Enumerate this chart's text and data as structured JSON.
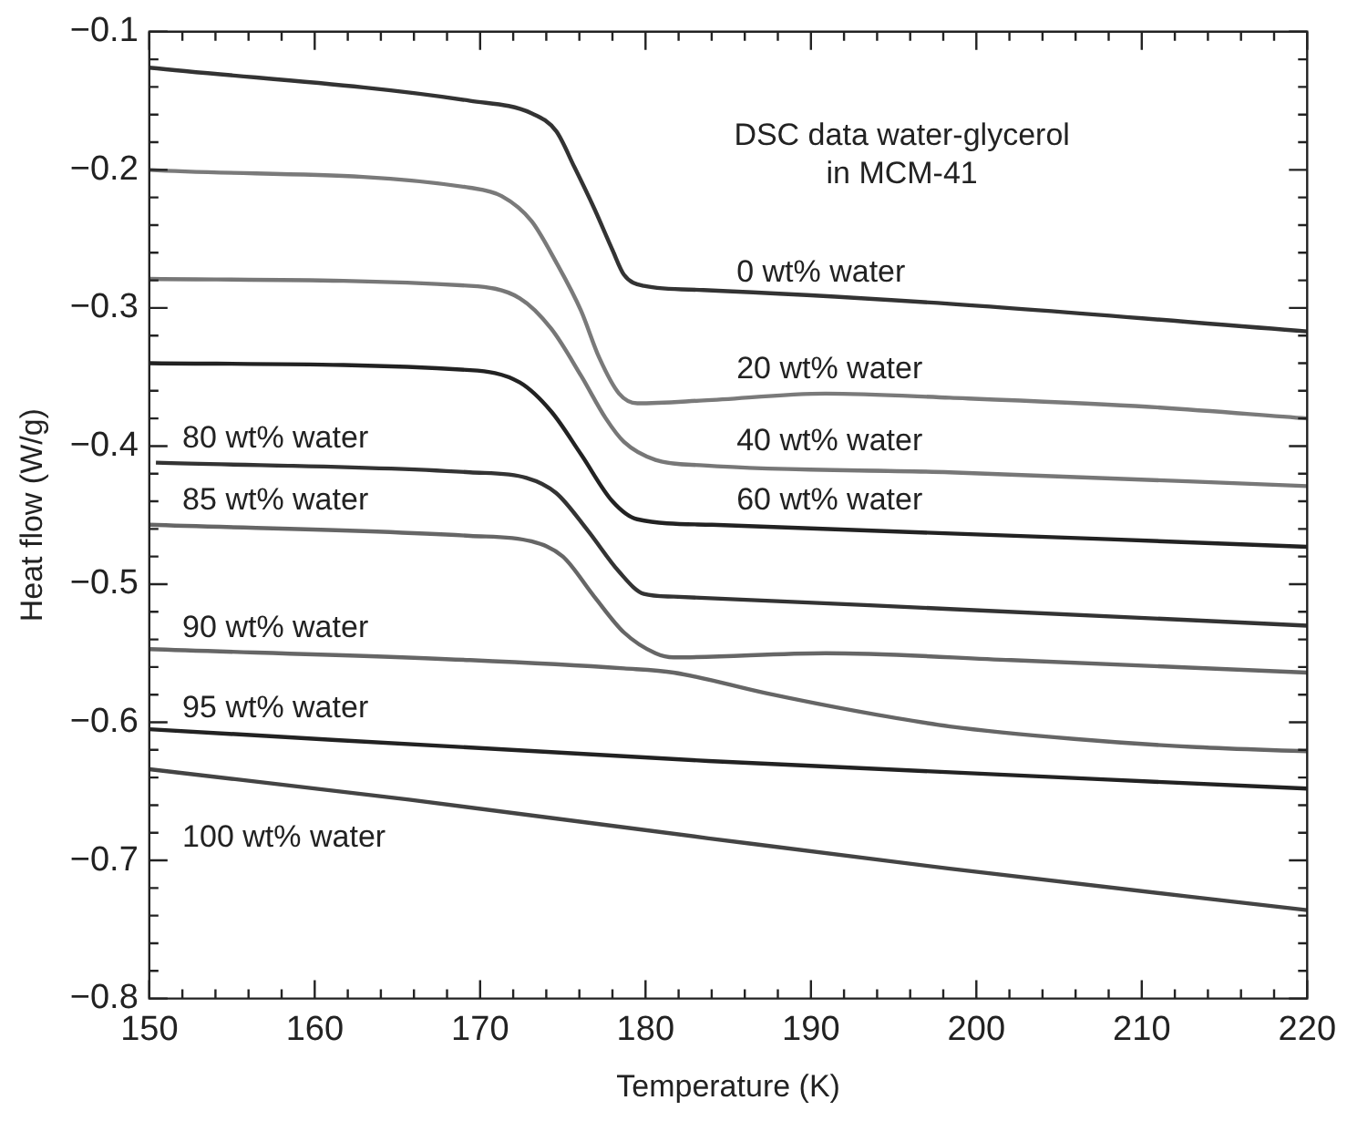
{
  "chart_data": {
    "type": "line",
    "title": "DSC data water-glycerol\nin MCM-41",
    "xlabel": "Temperature (K)",
    "ylabel": "Heat flow (W/g)",
    "xlim": [
      150,
      220
    ],
    "ylim": [
      -0.8,
      -0.1
    ],
    "xticks": [
      150,
      {
        "value": 152,
        "label": null
      },
      {
        "value": 154,
        "label": null
      },
      {
        "value": 156,
        "label": null
      },
      {
        "value": 158,
        "label": null
      },
      160,
      {
        "value": 162,
        "label": null
      },
      {
        "value": 164,
        "label": null
      },
      {
        "value": 166,
        "label": null
      },
      {
        "value": 168,
        "label": null
      },
      170,
      {
        "value": 172,
        "label": null
      },
      {
        "value": 174,
        "label": null
      },
      {
        "value": 176,
        "label": null
      },
      {
        "value": 178,
        "label": null
      },
      180,
      {
        "value": 182,
        "label": null
      },
      {
        "value": 184,
        "label": null
      },
      {
        "value": 186,
        "label": null
      },
      {
        "value": 188,
        "label": null
      },
      190,
      {
        "value": 192,
        "label": null
      },
      {
        "value": 194,
        "label": null
      },
      {
        "value": 196,
        "label": null
      },
      {
        "value": 198,
        "label": null
      },
      200,
      {
        "value": 202,
        "label": null
      },
      {
        "value": 204,
        "label": null
      },
      {
        "value": 206,
        "label": null
      },
      {
        "value": 208,
        "label": null
      },
      210,
      {
        "value": 212,
        "label": null
      },
      {
        "value": 214,
        "label": null
      },
      {
        "value": 216,
        "label": null
      },
      {
        "value": 218,
        "label": null
      },
      220
    ],
    "yticks": [
      {
        "value": -0.8,
        "label": "−0.8"
      },
      {
        "value": -0.78,
        "label": null
      },
      {
        "value": -0.76,
        "label": null
      },
      {
        "value": -0.74,
        "label": null
      },
      {
        "value": -0.72,
        "label": null
      },
      {
        "value": -0.7,
        "label": "−0.7"
      },
      {
        "value": -0.68,
        "label": null
      },
      {
        "value": -0.66,
        "label": null
      },
      {
        "value": -0.64,
        "label": null
      },
      {
        "value": -0.62,
        "label": null
      },
      {
        "value": -0.6,
        "label": "−0.6"
      },
      {
        "value": -0.58,
        "label": null
      },
      {
        "value": -0.56,
        "label": null
      },
      {
        "value": -0.54,
        "label": null
      },
      {
        "value": -0.52,
        "label": null
      },
      {
        "value": -0.5,
        "label": "−0.5"
      },
      {
        "value": -0.48,
        "label": null
      },
      {
        "value": -0.46,
        "label": null
      },
      {
        "value": -0.44,
        "label": null
      },
      {
        "value": -0.42,
        "label": null
      },
      {
        "value": -0.4,
        "label": "−0.4"
      },
      {
        "value": -0.38,
        "label": null
      },
      {
        "value": -0.36,
        "label": null
      },
      {
        "value": -0.34,
        "label": null
      },
      {
        "value": -0.32,
        "label": null
      },
      {
        "value": -0.3,
        "label": "−0.3"
      },
      {
        "value": -0.28,
        "label": null
      },
      {
        "value": -0.26,
        "label": null
      },
      {
        "value": -0.24,
        "label": null
      },
      {
        "value": -0.22,
        "label": null
      },
      {
        "value": -0.2,
        "label": "−0.2"
      },
      {
        "value": -0.18,
        "label": null
      },
      {
        "value": -0.16,
        "label": null
      },
      {
        "value": -0.14,
        "label": null
      },
      {
        "value": -0.12,
        "label": null
      },
      {
        "value": -0.1,
        "label": "−0.1"
      }
    ],
    "grid": false,
    "legend": false,
    "marker": "none",
    "line_style": "solid",
    "series": [
      {
        "name": "0 wt% water",
        "color": "#333333",
        "x": [
          150,
          169.4,
          173.1,
          174.6,
          175.7,
          176.9,
          178,
          178.7,
          179.9,
          183.5,
          198.4,
          220
        ],
        "values": [
          -0.126,
          -0.15,
          -0.159,
          -0.172,
          -0.198,
          -0.228,
          -0.258,
          -0.276,
          -0.284,
          -0.287,
          -0.297,
          -0.317
        ]
      },
      {
        "name": "20 wt% water",
        "color": "#7a7a7a",
        "x": [
          150,
          169.4,
          171.3,
          173.1,
          174.6,
          176.1,
          177.2,
          178.4,
          179.5,
          183.5,
          190.9,
          198.4,
          209.6,
          220
        ],
        "values": [
          -0.2,
          -0.213,
          -0.219,
          -0.237,
          -0.267,
          -0.302,
          -0.336,
          -0.362,
          -0.369,
          -0.367,
          -0.362,
          -0.365,
          -0.371,
          -0.38
        ]
      },
      {
        "name": "40 wt% water",
        "color": "#777777",
        "x": [
          150,
          169.4,
          172.4,
          174.3,
          176.1,
          177.6,
          178.7,
          180.6,
          183.5,
          198.4,
          220
        ],
        "values": [
          -0.279,
          -0.284,
          -0.293,
          -0.315,
          -0.349,
          -0.38,
          -0.397,
          -0.41,
          -0.414,
          -0.419,
          -0.429
        ]
      },
      {
        "name": "60 wt% water",
        "color": "#222222",
        "x": [
          150,
          169.4,
          172.4,
          174.3,
          176.1,
          178,
          179.5,
          184,
          220
        ],
        "values": [
          -0.34,
          -0.345,
          -0.354,
          -0.375,
          -0.406,
          -0.44,
          -0.453,
          -0.457,
          -0.473
        ]
      },
      {
        "name": "80 wt% water",
        "color": "#333333",
        "x": [
          150.4,
          169.4,
          172.8,
          174.6,
          176.5,
          178.4,
          179.9,
          181.7,
          198.4,
          220
        ],
        "values": [
          -0.412,
          -0.419,
          -0.423,
          -0.434,
          -0.461,
          -0.491,
          -0.507,
          -0.509,
          -0.518,
          -0.53
        ]
      },
      {
        "name": "85 wt% water",
        "color": "#666666",
        "x": [
          150,
          169.4,
          173.1,
          175,
          176.9,
          178.7,
          180.6,
          181.7,
          190.9,
          202.1,
          220
        ],
        "values": [
          -0.457,
          -0.465,
          -0.469,
          -0.48,
          -0.509,
          -0.535,
          -0.55,
          -0.553,
          -0.55,
          -0.555,
          -0.564
        ]
      },
      {
        "name": "90 wt% water",
        "color": "#666666",
        "x": [
          150,
          169.4,
          178.7,
          181.7,
          187.3,
          192.8,
          198.4,
          205.9,
          213.3,
          220
        ],
        "values": [
          -0.547,
          -0.555,
          -0.561,
          -0.564,
          -0.579,
          -0.592,
          -0.603,
          -0.612,
          -0.618,
          -0.621
        ]
      },
      {
        "name": "95 wt% water",
        "color": "#222222",
        "x": [
          150,
          183.8,
          220
        ],
        "values": [
          -0.605,
          -0.628,
          -0.648
        ]
      },
      {
        "name": "100 wt% water",
        "color": "#444444",
        "x": [
          150,
          165.7,
          183.8,
          198.4,
          220
        ],
        "values": [
          -0.634,
          -0.656,
          -0.684,
          -0.706,
          -0.736
        ]
      }
    ]
  }
}
